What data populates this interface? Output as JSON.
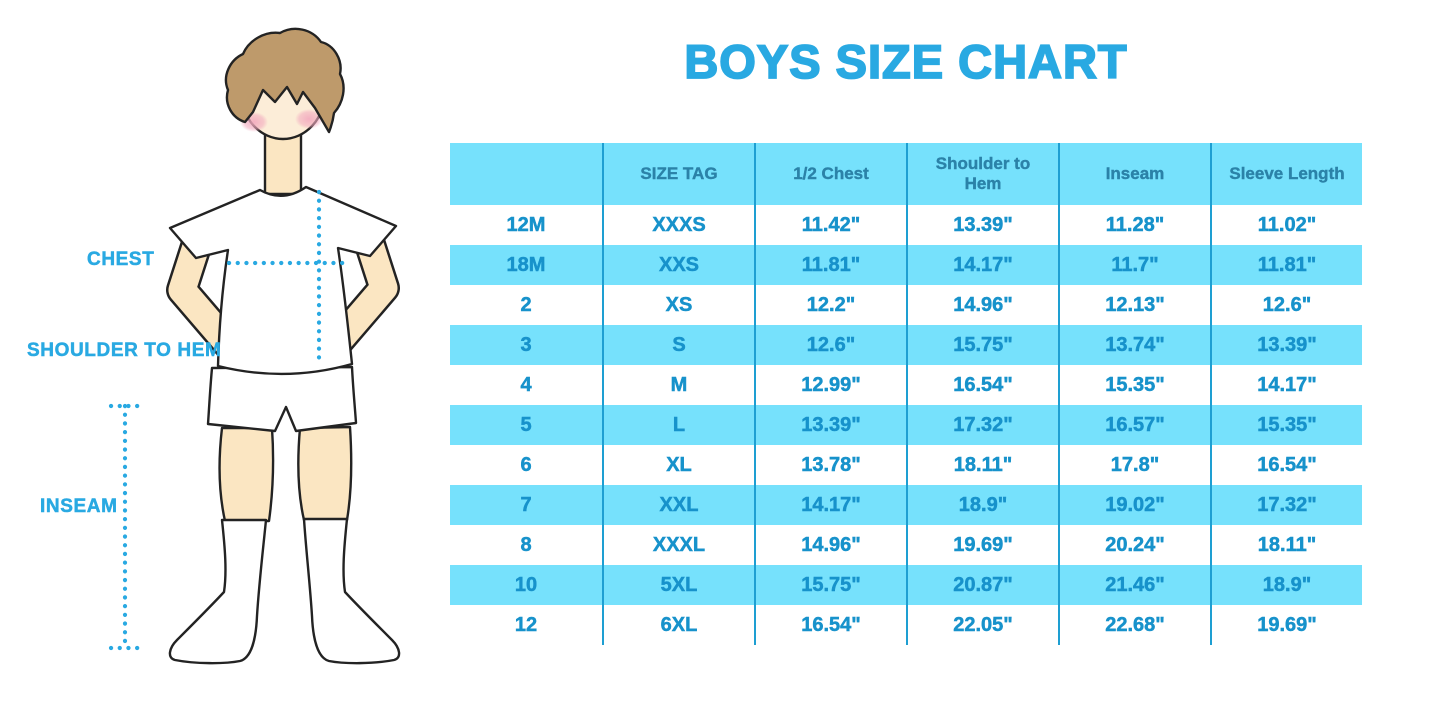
{
  "title": "BOYS SIZE CHART",
  "figure": {
    "description": "outline illustration of a boy in white t-shirt, shorts and knee socks with dotted measurement guides",
    "chest_label": "CHEST",
    "shoulder_to_hem_label": "SHOULDER TO HEM",
    "inseam_label": "INSEAM"
  },
  "chart_data": {
    "type": "table",
    "title": "BOYS SIZE CHART",
    "headers": [
      "",
      "SIZE TAG",
      "1/2 Chest",
      "Shoulder to Hem",
      "Inseam",
      "Sleeve Length"
    ],
    "rows": [
      [
        "12M",
        "XXXS",
        "11.42\"",
        "13.39\"",
        "11.28\"",
        "11.02\""
      ],
      [
        "18M",
        "XXS",
        "11.81\"",
        "14.17\"",
        "11.7\"",
        "11.81\""
      ],
      [
        "2",
        "XS",
        "12.2\"",
        "14.96\"",
        "12.13\"",
        "12.6\""
      ],
      [
        "3",
        "S",
        "12.6\"",
        "15.75\"",
        "13.74\"",
        "13.39\""
      ],
      [
        "4",
        "M",
        "12.99\"",
        "16.54\"",
        "15.35\"",
        "14.17\""
      ],
      [
        "5",
        "L",
        "13.39\"",
        "17.32\"",
        "16.57\"",
        "15.35\""
      ],
      [
        "6",
        "XL",
        "13.78\"",
        "18.11\"",
        "17.8\"",
        "16.54\""
      ],
      [
        "7",
        "XXL",
        "14.17\"",
        "18.9\"",
        "19.02\"",
        "17.32\""
      ],
      [
        "8",
        "XXXL",
        "14.96\"",
        "19.69\"",
        "20.24\"",
        "18.11\""
      ],
      [
        "10",
        "5XL",
        "15.75\"",
        "20.87\"",
        "21.46\"",
        "18.9\""
      ],
      [
        "12",
        "6XL",
        "16.54\"",
        "22.05\"",
        "22.68\"",
        "19.69\""
      ]
    ],
    "row_striping": "white and light blue alternating, first data row white",
    "grid": "vertical dividers only between the six columns"
  },
  "colors": {
    "accent_blue": "#29A9E2",
    "band_blue": "#76E1FC",
    "divider_blue": "#1E9FD2",
    "header_text": "#2B82A8",
    "cell_text": "#1792CB",
    "skin": "#FBE6C2",
    "face_skin": "#FCEDD8",
    "hair_brown": "#BE9A6B",
    "cheek_pink": "#F2A9BE"
  }
}
